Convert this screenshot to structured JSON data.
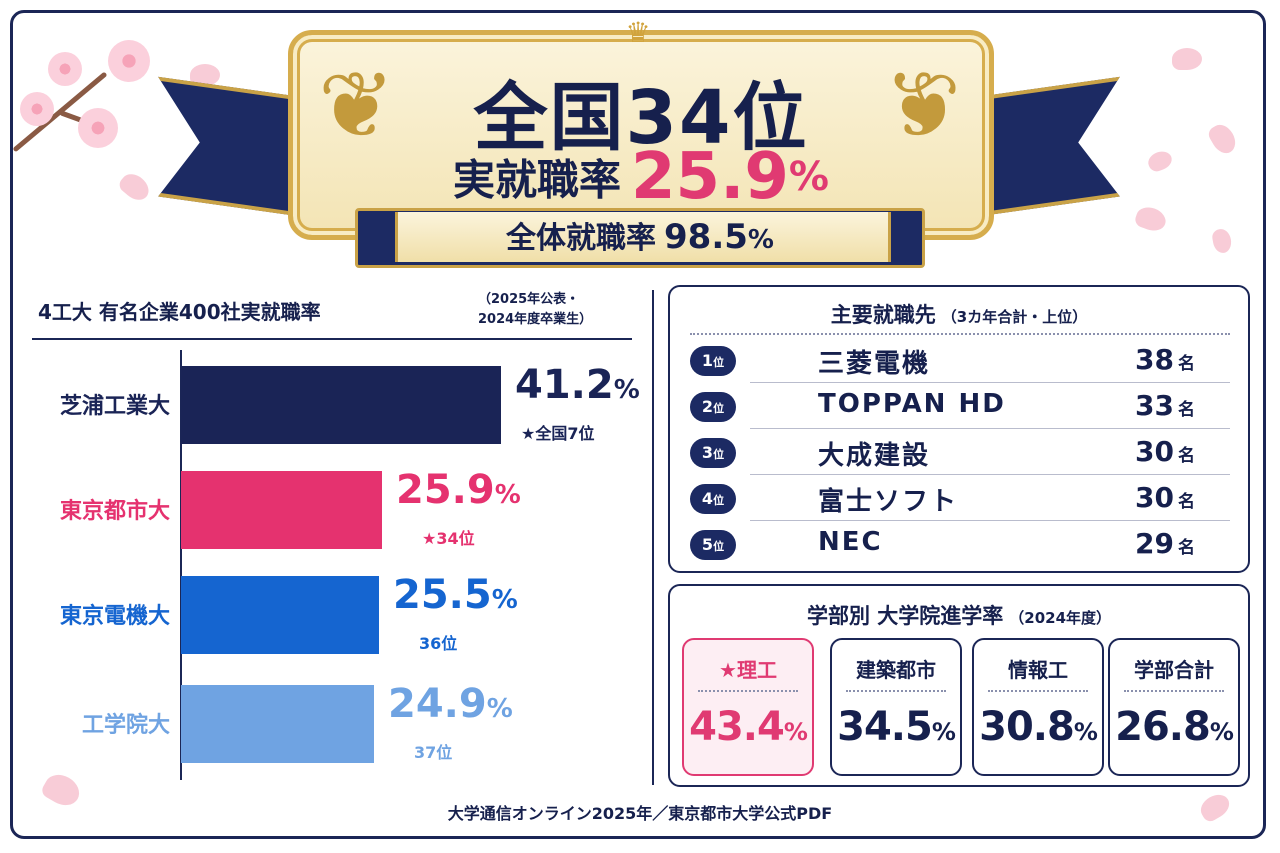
{
  "banner": {
    "rank": "全国34位",
    "actual_rate_label": "実就職率",
    "actual_rate_value": "25.9",
    "actual_rate_unit": "%",
    "overall_rate_label": "全体就職率",
    "overall_rate_value": "98.5",
    "overall_rate_unit": "%"
  },
  "chart_data": {
    "type": "bar",
    "orientation": "horizontal",
    "title": "4工大 有名企業400社実就職率",
    "note_line1": "（2025年公表・",
    "note_line2": "2024年度卒業生）",
    "categories": [
      "芝浦工業大",
      "東京都市大",
      "東京電機大",
      "工学院大"
    ],
    "values": [
      41.2,
      25.9,
      25.5,
      24.9
    ],
    "unit": "%",
    "rank_labels": [
      "★全国7位",
      "★34位",
      "36位",
      "37位"
    ],
    "colors": [
      "#1a2456",
      "#e5326f",
      "#1565d0",
      "#6fa3e2"
    ],
    "xlim": [
      0,
      50
    ],
    "grid": false
  },
  "employers": {
    "title": "主要就職先",
    "subtitle": "（3カ年合計・上位）",
    "rank_suffix": "位",
    "count_suffix": "名",
    "rows": [
      {
        "rank": "1",
        "company": "三菱電機",
        "count": "38"
      },
      {
        "rank": "2",
        "company": "TOPPAN HD",
        "count": "33"
      },
      {
        "rank": "3",
        "company": "大成建設",
        "count": "30"
      },
      {
        "rank": "4",
        "company": "富士ソフト",
        "count": "30"
      },
      {
        "rank": "5",
        "company": "NEC",
        "count": "29"
      }
    ]
  },
  "grad_school": {
    "title": "学部別 大学院進学率",
    "subtitle": "（2024年度）",
    "unit": "%",
    "cards": [
      {
        "label": "★理工",
        "value": "43.4",
        "color": "#e03a72"
      },
      {
        "label": "建築都市",
        "value": "34.5",
        "color": "#16204d"
      },
      {
        "label": "情報工",
        "value": "30.8",
        "color": "#16204d"
      },
      {
        "label": "学部合計",
        "value": "26.8",
        "color": "#16204d"
      }
    ]
  },
  "source": "大学通信オンライン2025年／東京都市大学公式PDF"
}
